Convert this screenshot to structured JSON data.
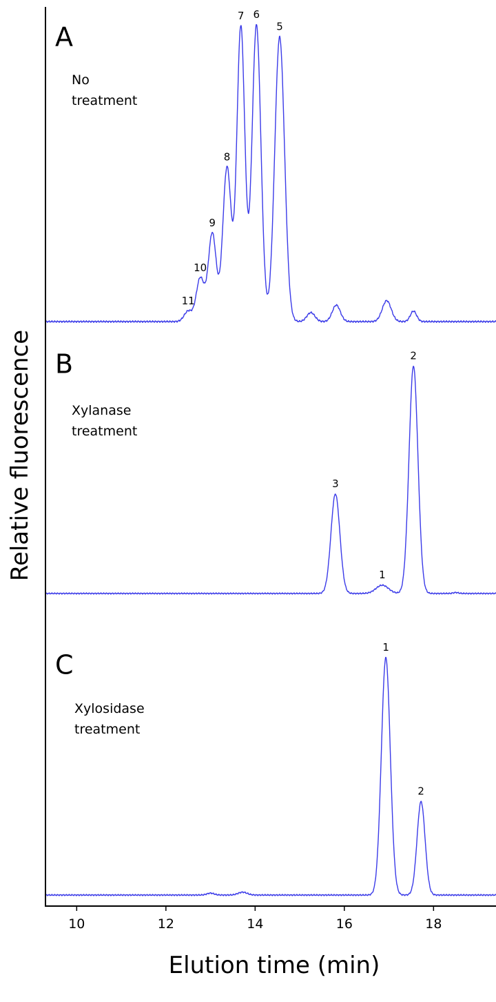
{
  "chart_data": {
    "type": "line",
    "xlabel": "Elution time (min)",
    "ylabel": "Relative fluorescence",
    "xlim": [
      9.3,
      19.4
    ],
    "x_ticks": [
      10,
      12,
      14,
      16,
      18
    ],
    "grid": false,
    "line_color": "#3a3ae8",
    "panels": [
      {
        "letter": "A",
        "condition": [
          "No",
          "treatment"
        ],
        "ylim": [
          0,
          1
        ],
        "baseline": 0.01,
        "peaks": [
          {
            "label": "11",
            "x": 12.5,
            "y": 0.045,
            "width": 0.09
          },
          {
            "label": "10",
            "x": 12.77,
            "y": 0.155,
            "width": 0.09
          },
          {
            "label": "9",
            "x": 13.04,
            "y": 0.305,
            "width": 0.09
          },
          {
            "label": "8",
            "x": 13.37,
            "y": 0.525,
            "width": 0.095
          },
          {
            "label": "7",
            "x": 13.68,
            "y": 0.995,
            "width": 0.09
          },
          {
            "label": "6",
            "x": 14.03,
            "y": 1.0,
            "width": 0.1
          },
          {
            "label": "5",
            "x": 14.55,
            "y": 0.96,
            "width": 0.11
          },
          {
            "label": "",
            "x": 15.25,
            "y": 0.04,
            "width": 0.09
          },
          {
            "label": "",
            "x": 15.82,
            "y": 0.065,
            "width": 0.09
          },
          {
            "label": "",
            "x": 16.95,
            "y": 0.08,
            "width": 0.1
          },
          {
            "label": "",
            "x": 17.55,
            "y": 0.045,
            "width": 0.07
          }
        ]
      },
      {
        "letter": "B",
        "condition": [
          "Xylanase",
          "treatment"
        ],
        "ylim": [
          0,
          1
        ],
        "baseline": 0.01,
        "peaks": [
          {
            "label": "3",
            "x": 15.8,
            "y": 0.43,
            "width": 0.1
          },
          {
            "label": "1",
            "x": 16.85,
            "y": 0.045,
            "width": 0.14
          },
          {
            "label": "2",
            "x": 17.55,
            "y": 0.97,
            "width": 0.1
          },
          {
            "label": "",
            "x": 18.5,
            "y": 0.014,
            "width": 0.06
          }
        ]
      },
      {
        "letter": "C",
        "condition": [
          "Xylosidase",
          "treatment"
        ],
        "ylim": [
          0,
          1
        ],
        "baseline": 0.01,
        "peaks": [
          {
            "label": "",
            "x": 13.0,
            "y": 0.018,
            "width": 0.08
          },
          {
            "label": "",
            "x": 13.72,
            "y": 0.022,
            "width": 0.1
          },
          {
            "label": "1",
            "x": 16.93,
            "y": 1.0,
            "width": 0.1
          },
          {
            "label": "2",
            "x": 17.72,
            "y": 0.4,
            "width": 0.09
          }
        ]
      }
    ]
  }
}
